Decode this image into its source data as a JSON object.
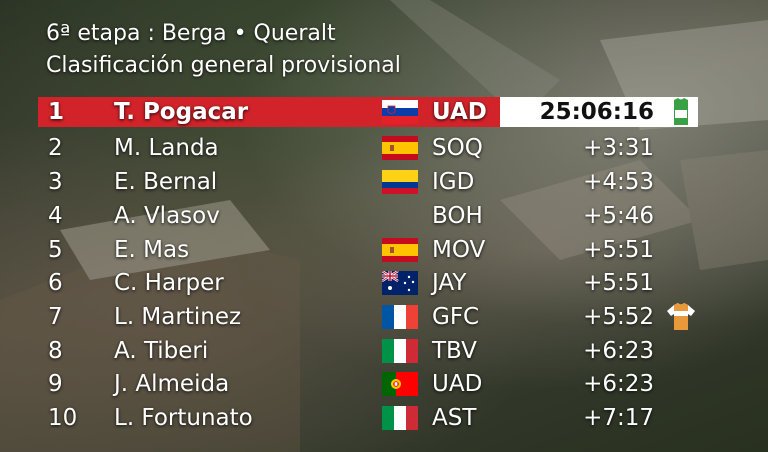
{
  "header": {
    "line1": "6ª etapa : Berga • Queralt",
    "line2": "Clasificación general provisional"
  },
  "colors": {
    "leader_red": "#d2232a",
    "jersey_green": "#3aa046",
    "jersey_white": "#ffffff",
    "jersey_orange": "#e89a3a"
  },
  "riders": [
    {
      "pos": "1",
      "name": "T. Pogacar",
      "team": "UAD",
      "time": "25:06:16",
      "flag": "slovenia",
      "jersey": "leader-jersey-icon"
    },
    {
      "pos": "2",
      "name": "M. Landa",
      "team": "SOQ",
      "time": "+3:31",
      "flag": "spain"
    },
    {
      "pos": "3",
      "name": "E. Bernal",
      "team": "IGD",
      "time": "+4:53",
      "flag": "colombia"
    },
    {
      "pos": "4",
      "name": "A. Vlasov",
      "team": "BOH",
      "time": "+5:46",
      "flag": "none"
    },
    {
      "pos": "5",
      "name": "E. Mas",
      "team": "MOV",
      "time": "+5:51",
      "flag": "spain"
    },
    {
      "pos": "6",
      "name": "C. Harper",
      "team": "JAY",
      "time": "+5:51",
      "flag": "australia"
    },
    {
      "pos": "7",
      "name": "L. Martinez",
      "team": "GFC",
      "time": "+5:52",
      "flag": "france",
      "jersey": "young-rider-jersey-icon"
    },
    {
      "pos": "8",
      "name": "A. Tiberi",
      "team": "TBV",
      "time": "+6:23",
      "flag": "italy"
    },
    {
      "pos": "9",
      "name": "J. Almeida",
      "team": "UAD",
      "time": "+6:23",
      "flag": "portugal"
    },
    {
      "pos": "10",
      "name": "L. Fortunato",
      "team": "AST",
      "time": "+7:17",
      "flag": "italy"
    }
  ]
}
